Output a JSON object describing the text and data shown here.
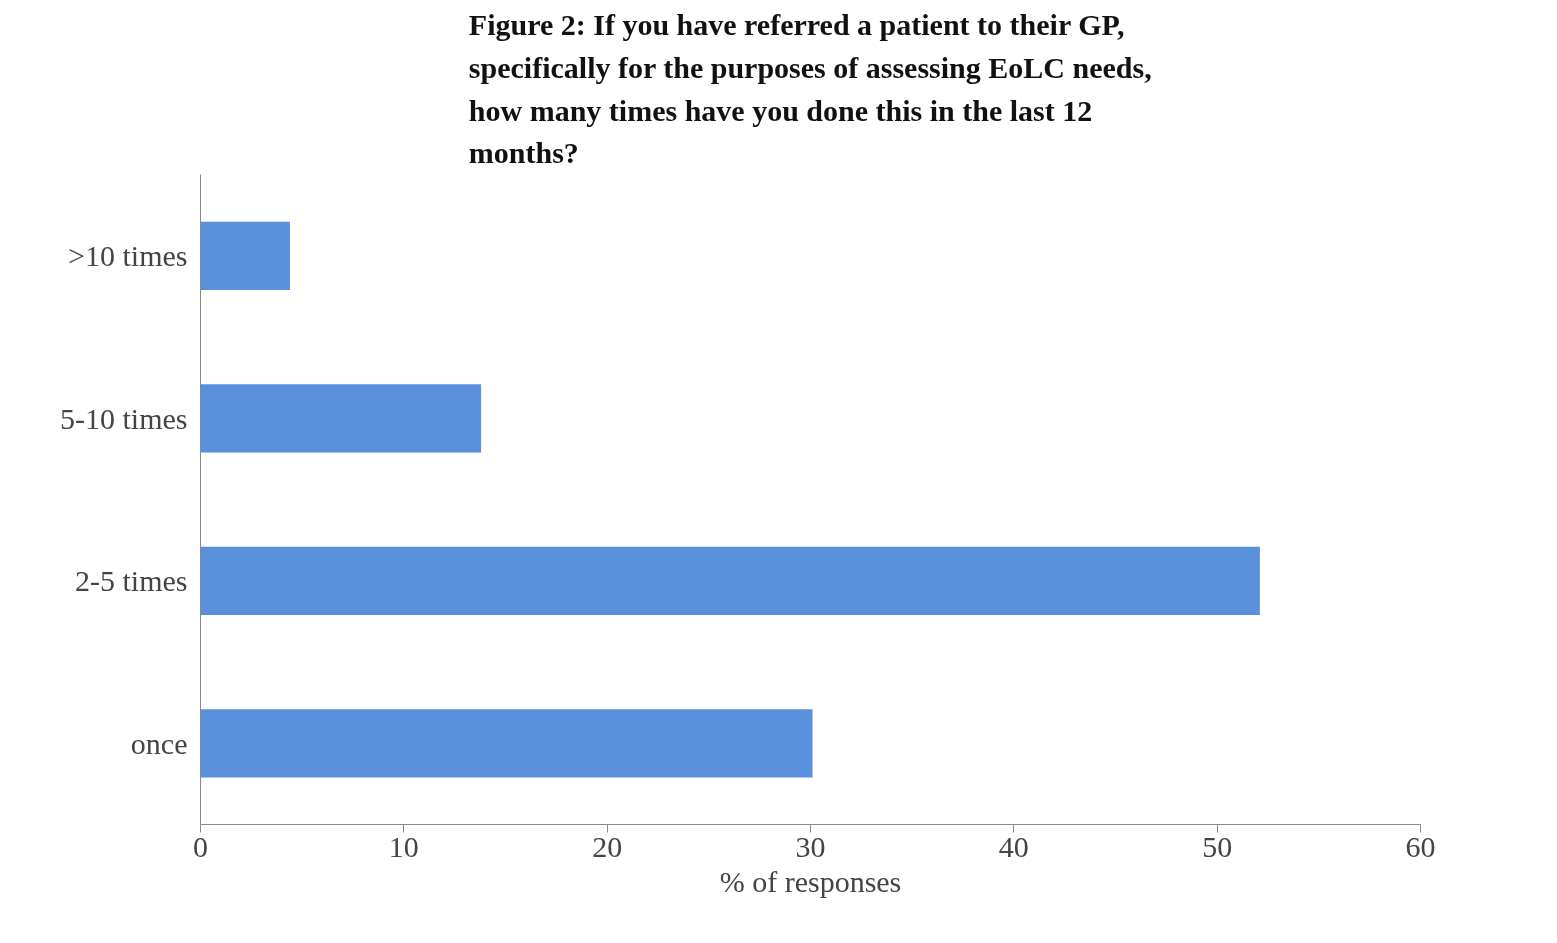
{
  "chart_data": {
    "type": "bar",
    "orientation": "horizontal",
    "title": "Figure 2: If you have referred a patient to their GP, specifically for the purposes of assessing EoLC needs, how many times have you done this in the last 12 months?",
    "xlabel": "% of responses",
    "categories": [
      ">10 times",
      "5-10 times",
      "2-5 times",
      "once"
    ],
    "values": [
      4.4,
      13.8,
      52.1,
      30.1
    ],
    "color": "#5a8fdc",
    "xlim": [
      0,
      60
    ],
    "xticks": [
      0,
      10,
      20,
      30,
      40,
      50,
      60
    ],
    "grid": false
  }
}
